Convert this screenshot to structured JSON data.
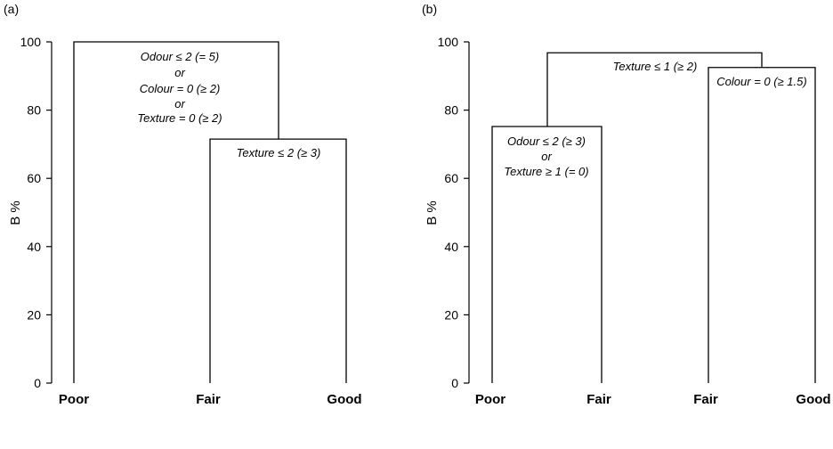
{
  "panels": [
    {
      "label": "(a)",
      "ylabel": "B %",
      "yticks": [
        "0",
        "20",
        "40",
        "60",
        "80",
        "100"
      ],
      "leaves": [
        "Poor",
        "Fair",
        "Good"
      ],
      "splits": [
        {
          "lines": [
            "Odour ≤ 2 (= 5)",
            "or",
            "Colour = 0 (≥ 2)",
            "or",
            "Texture = 0 (≥ 2)"
          ],
          "value": 100
        },
        {
          "lines": [
            "Texture ≤ 2 (≥ 3)"
          ],
          "value": 71.5
        }
      ]
    },
    {
      "label": "(b)",
      "ylabel": "B %",
      "yticks": [
        "0",
        "20",
        "40",
        "60",
        "80",
        "100"
      ],
      "leaves": [
        "Poor",
        "Fair",
        "Fair",
        "Good"
      ],
      "splits": [
        {
          "lines": [
            "Texture ≤ 1 (≥ 2)"
          ],
          "value": 96.8
        },
        {
          "lines": [
            "Odour ≤ 2 (≥ 3)",
            "or",
            "Texture ≥ 1 (= 0)"
          ],
          "value": 75.2
        },
        {
          "lines": [
            "Colour = 0 (≥ 1.5)"
          ],
          "value": 92.5
        }
      ]
    }
  ]
}
